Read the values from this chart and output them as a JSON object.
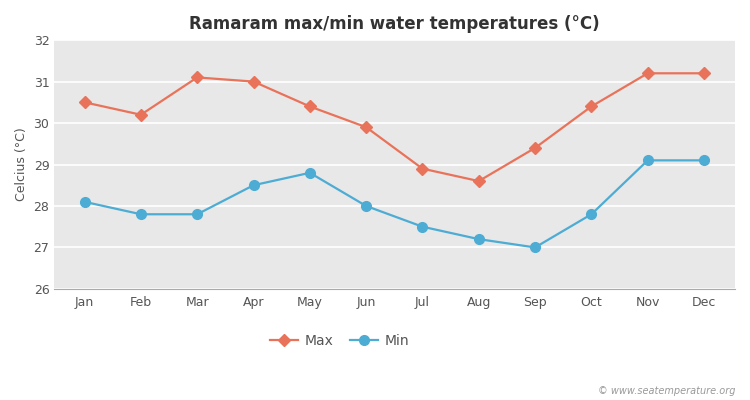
{
  "title": "Ramaram max/min water temperatures (°C)",
  "ylabel": "Celcius (°C)",
  "months": [
    "Jan",
    "Feb",
    "Mar",
    "Apr",
    "May",
    "Jun",
    "Jul",
    "Aug",
    "Sep",
    "Oct",
    "Nov",
    "Dec"
  ],
  "max_temps": [
    30.5,
    30.2,
    31.1,
    31.0,
    30.4,
    29.9,
    28.9,
    28.6,
    29.4,
    30.4,
    31.2,
    31.2
  ],
  "min_temps": [
    28.1,
    27.8,
    27.8,
    28.5,
    28.8,
    28.0,
    27.5,
    27.2,
    27.0,
    27.8,
    29.1,
    29.1
  ],
  "max_color": "#e8735a",
  "min_color": "#4dacd4",
  "bg_color": "#ffffff",
  "plot_bg_color": "#e8e8e8",
  "grid_color": "#ffffff",
  "ylim": [
    26,
    32
  ],
  "yticks": [
    26,
    27,
    28,
    29,
    30,
    31,
    32
  ],
  "marker_max": "D",
  "marker_min": "o",
  "linewidth": 1.6,
  "markersize_max": 6,
  "markersize_min": 7,
  "legend_labels": [
    "Max",
    "Min"
  ],
  "watermark": "© www.seatemperature.org",
  "title_fontsize": 12,
  "label_fontsize": 9,
  "tick_fontsize": 9
}
